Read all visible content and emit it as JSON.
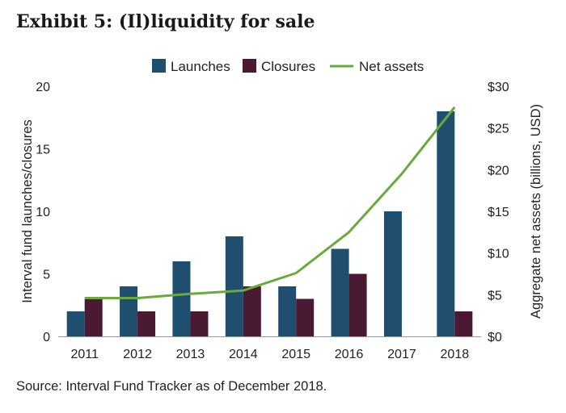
{
  "title": "Exhibit 5: (Il)liquidity for sale",
  "source": "Source: Interval Fund Tracker as of December 2018.",
  "colors": {
    "launches": "#1f4e6e",
    "closures": "#4a1a33",
    "net_assets": "#6aaa3c"
  },
  "chart_data": {
    "type": "bar",
    "categories": [
      "2011",
      "2012",
      "2013",
      "2014",
      "2015",
      "2016",
      "2017",
      "2018"
    ],
    "series": [
      {
        "name": "Launches",
        "type": "bar",
        "axis": "left",
        "values": [
          2,
          4,
          6,
          8,
          4,
          7,
          10,
          18
        ]
      },
      {
        "name": "Closures",
        "type": "bar",
        "axis": "left",
        "values": [
          3,
          2,
          2,
          4,
          3,
          5,
          0,
          2
        ]
      },
      {
        "name": "Net assets",
        "type": "line",
        "axis": "right",
        "values": [
          4.6,
          4.6,
          5.1,
          5.5,
          7.6,
          12.5,
          19.5,
          27.5
        ]
      }
    ],
    "ylabel": "Interval fund launches/closures",
    "ylim": [
      0,
      20
    ],
    "yticks": [
      "0",
      "5",
      "10",
      "15",
      "20"
    ],
    "y2label": "Aggregate net assets (billions, USD)",
    "y2lim": [
      0,
      30
    ],
    "y2ticks": [
      "$0",
      "$5",
      "$10",
      "$15",
      "$20",
      "$25",
      "$30"
    ],
    "legend": "top-center"
  }
}
